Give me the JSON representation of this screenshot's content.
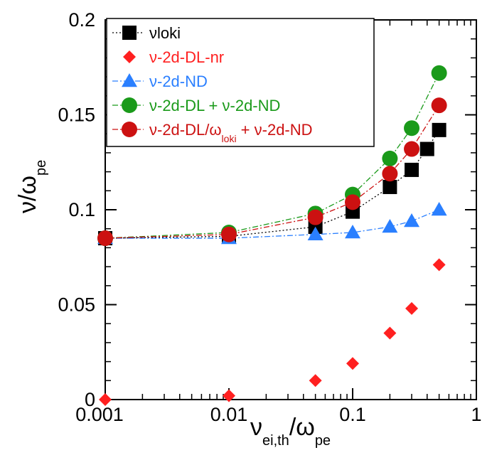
{
  "chart_data": {
    "type": "scatter",
    "title": "",
    "x_scale": "log",
    "xlim": [
      0.001,
      1
    ],
    "ylim": [
      0,
      0.2
    ],
    "x_ticks": [
      0.001,
      0.01,
      0.1,
      1
    ],
    "x_tick_labels": [
      "0.001",
      "0.01",
      "0.1",
      "1"
    ],
    "y_ticks": [
      0,
      0.05,
      0.1,
      0.15,
      0.2
    ],
    "y_tick_labels": [
      "0",
      "0.05",
      "0.1",
      "0.15",
      "0.2"
    ],
    "xlabel": {
      "main": "ν",
      "sub1": "ei,th",
      "slash": "/ω",
      "sub2": "pe"
    },
    "ylabel": {
      "main": "ν/ω",
      "sub": "pe"
    },
    "legend_position": "top-left",
    "series": [
      {
        "name": "νloki",
        "label_main": "νloki",
        "label_sub": "",
        "label_tail": "",
        "color": "#000000",
        "marker": "square",
        "line": "dotted",
        "x": [
          0.001,
          0.01,
          0.05,
          0.1,
          0.2,
          0.3,
          0.4,
          0.5
        ],
        "y": [
          0.085,
          0.086,
          0.091,
          0.099,
          0.112,
          0.121,
          0.132,
          0.142
        ]
      },
      {
        "name": "ν-2d-DL-nr",
        "label_main": "ν-2d-DL-nr",
        "label_sub": "",
        "label_tail": "",
        "color": "#ff2020",
        "marker": "diamond",
        "line": "none",
        "x": [
          0.001,
          0.01,
          0.05,
          0.1,
          0.2,
          0.3,
          0.5
        ],
        "y": [
          0.0,
          0.002,
          0.01,
          0.019,
          0.035,
          0.048,
          0.071
        ]
      },
      {
        "name": "ν-2d-ND",
        "label_main": "ν-2d-ND",
        "label_sub": "",
        "label_tail": "",
        "color": "#2a7fff",
        "marker": "triangle",
        "line": "dashdot",
        "x": [
          0.001,
          0.01,
          0.05,
          0.1,
          0.2,
          0.3,
          0.5
        ],
        "y": [
          0.085,
          0.085,
          0.087,
          0.088,
          0.091,
          0.094,
          0.1
        ]
      },
      {
        "name": "ν-2d-DL + ν-2d-ND",
        "label_main": "ν-2d-DL + ν-2d-ND",
        "label_sub": "",
        "label_tail": "",
        "color": "#1a9a1a",
        "marker": "circle",
        "line": "dashdot",
        "x": [
          0.001,
          0.01,
          0.05,
          0.1,
          0.2,
          0.3,
          0.5
        ],
        "y": [
          0.085,
          0.088,
          0.098,
          0.108,
          0.127,
          0.143,
          0.172
        ]
      },
      {
        "name": "ν-2d-DL/ωloki + ν-2d-ND",
        "label_main": "ν-2d-DL/ω",
        "label_sub": "loki",
        "label_tail": " + ν-2d-ND",
        "color": "#cc1111",
        "marker": "circle",
        "line": "dashdot",
        "x": [
          0.001,
          0.01,
          0.05,
          0.1,
          0.2,
          0.3,
          0.5
        ],
        "y": [
          0.085,
          0.087,
          0.096,
          0.104,
          0.119,
          0.132,
          0.155
        ]
      }
    ]
  }
}
